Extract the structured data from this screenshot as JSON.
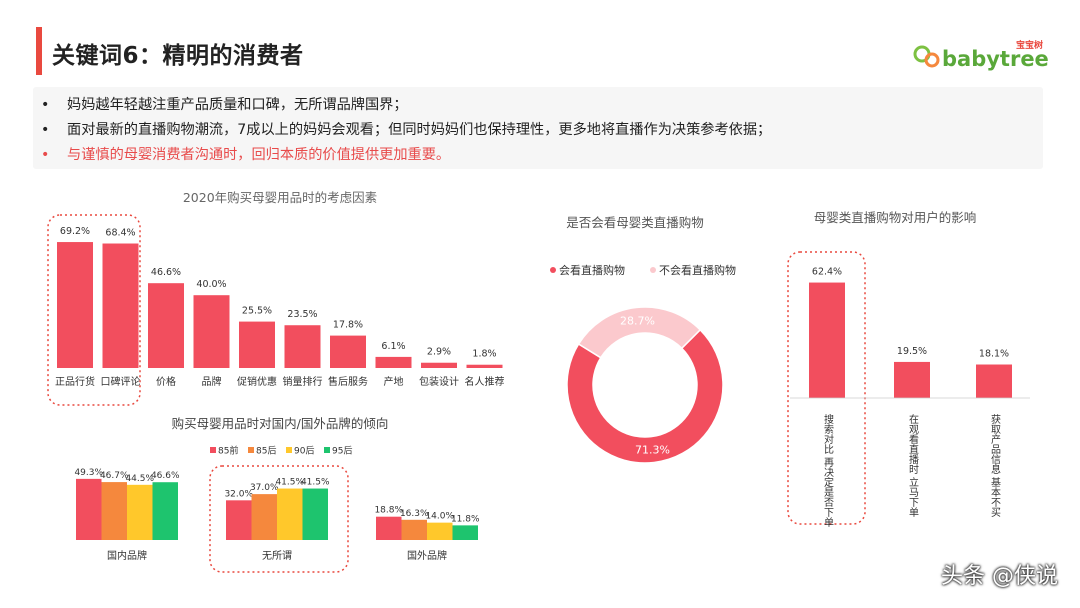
{
  "header": {
    "title": "关键词6：精明的消费者",
    "logo_cn": "宝宝树",
    "logo_en": "babytree"
  },
  "bullets": [
    {
      "text": "妈妈越年轻越注重产品质量和口碑，无所谓品牌国界；",
      "highlight": false
    },
    {
      "text": "面对最新的直播购物潮流，7成以上的妈妈会观看；但同时妈妈们也保持理性，更多地将直播作为决策参考依据；",
      "highlight": false
    },
    {
      "text": "与谨慎的母婴消费者沟通时，回归本质的价值提供更加重要。",
      "highlight": true
    }
  ],
  "colors": {
    "accent": "#e9493f",
    "bar_red": "#f24e5e",
    "pink": "#fbc9cd",
    "orange": "#f5883d",
    "yellow": "#ffc82b",
    "green": "#1ec46e"
  },
  "chart_data": [
    {
      "type": "bar",
      "title": "2020年购买母婴用品时的考虑因素",
      "categories": [
        "正品行货",
        "口碑评论",
        "价格",
        "品牌",
        "促销优惠",
        "销量排行",
        "售后服务",
        "产地",
        "包装设计",
        "名人推荐"
      ],
      "values": [
        69.2,
        68.4,
        46.6,
        40.0,
        25.5,
        23.5,
        17.8,
        6.1,
        2.9,
        1.8
      ],
      "labels": [
        "69.2%",
        "68.4%",
        "46.6%",
        "40.0%",
        "25.5%",
        "23.5%",
        "17.8%",
        "6.1%",
        "2.9%",
        "1.8%"
      ],
      "highlighted_categories": [
        "正品行货",
        "口碑评论"
      ]
    },
    {
      "type": "bar",
      "title": "购买母婴用品时对国内/国外品牌的倾向",
      "categories": [
        "国内品牌",
        "无所谓",
        "国外品牌"
      ],
      "series": [
        {
          "name": "85前",
          "values": [
            49.3,
            32.0,
            18.8
          ],
          "labels": [
            "49.3%",
            "32.0%",
            "18.8%"
          ],
          "color": "#f24e5e"
        },
        {
          "name": "85后",
          "values": [
            46.7,
            37.0,
            16.3
          ],
          "labels": [
            "46.7%",
            "37.0%",
            "16.3%"
          ],
          "color": "#f5883d"
        },
        {
          "name": "90后",
          "values": [
            44.5,
            41.5,
            14.0
          ],
          "labels": [
            "44.5%",
            "41.5%",
            "14.0%"
          ],
          "color": "#ffc82b"
        },
        {
          "name": "95后",
          "values": [
            46.6,
            41.5,
            11.8
          ],
          "labels": [
            "46.6%",
            "41.5%",
            "11.8%"
          ],
          "color": "#1ec46e"
        }
      ],
      "legend_position": "top",
      "highlighted_categories": [
        "无所谓"
      ]
    },
    {
      "type": "pie",
      "title": "是否会看母婴类直播购物",
      "slices": [
        {
          "name": "会看直播购物",
          "value": 71.3,
          "label": "71.3%",
          "color": "#f24e5e"
        },
        {
          "name": "不会看直播购物",
          "value": 28.7,
          "label": "28.7%",
          "color": "#fbc9cd"
        }
      ],
      "donut": true,
      "legend_position": "top"
    },
    {
      "type": "bar",
      "title": "母婴类直播购物对用户的影响",
      "categories": [
        "搜索对比 再决定是否下单",
        "在观看直播时 立马下单",
        "获取产品信息 基本不买"
      ],
      "values": [
        62.4,
        19.5,
        18.1
      ],
      "labels": [
        "62.4%",
        "19.5%",
        "18.1%"
      ],
      "highlighted_categories": [
        "搜索对比 再决定是否下单"
      ]
    }
  ],
  "watermark": "头条 @侠说"
}
